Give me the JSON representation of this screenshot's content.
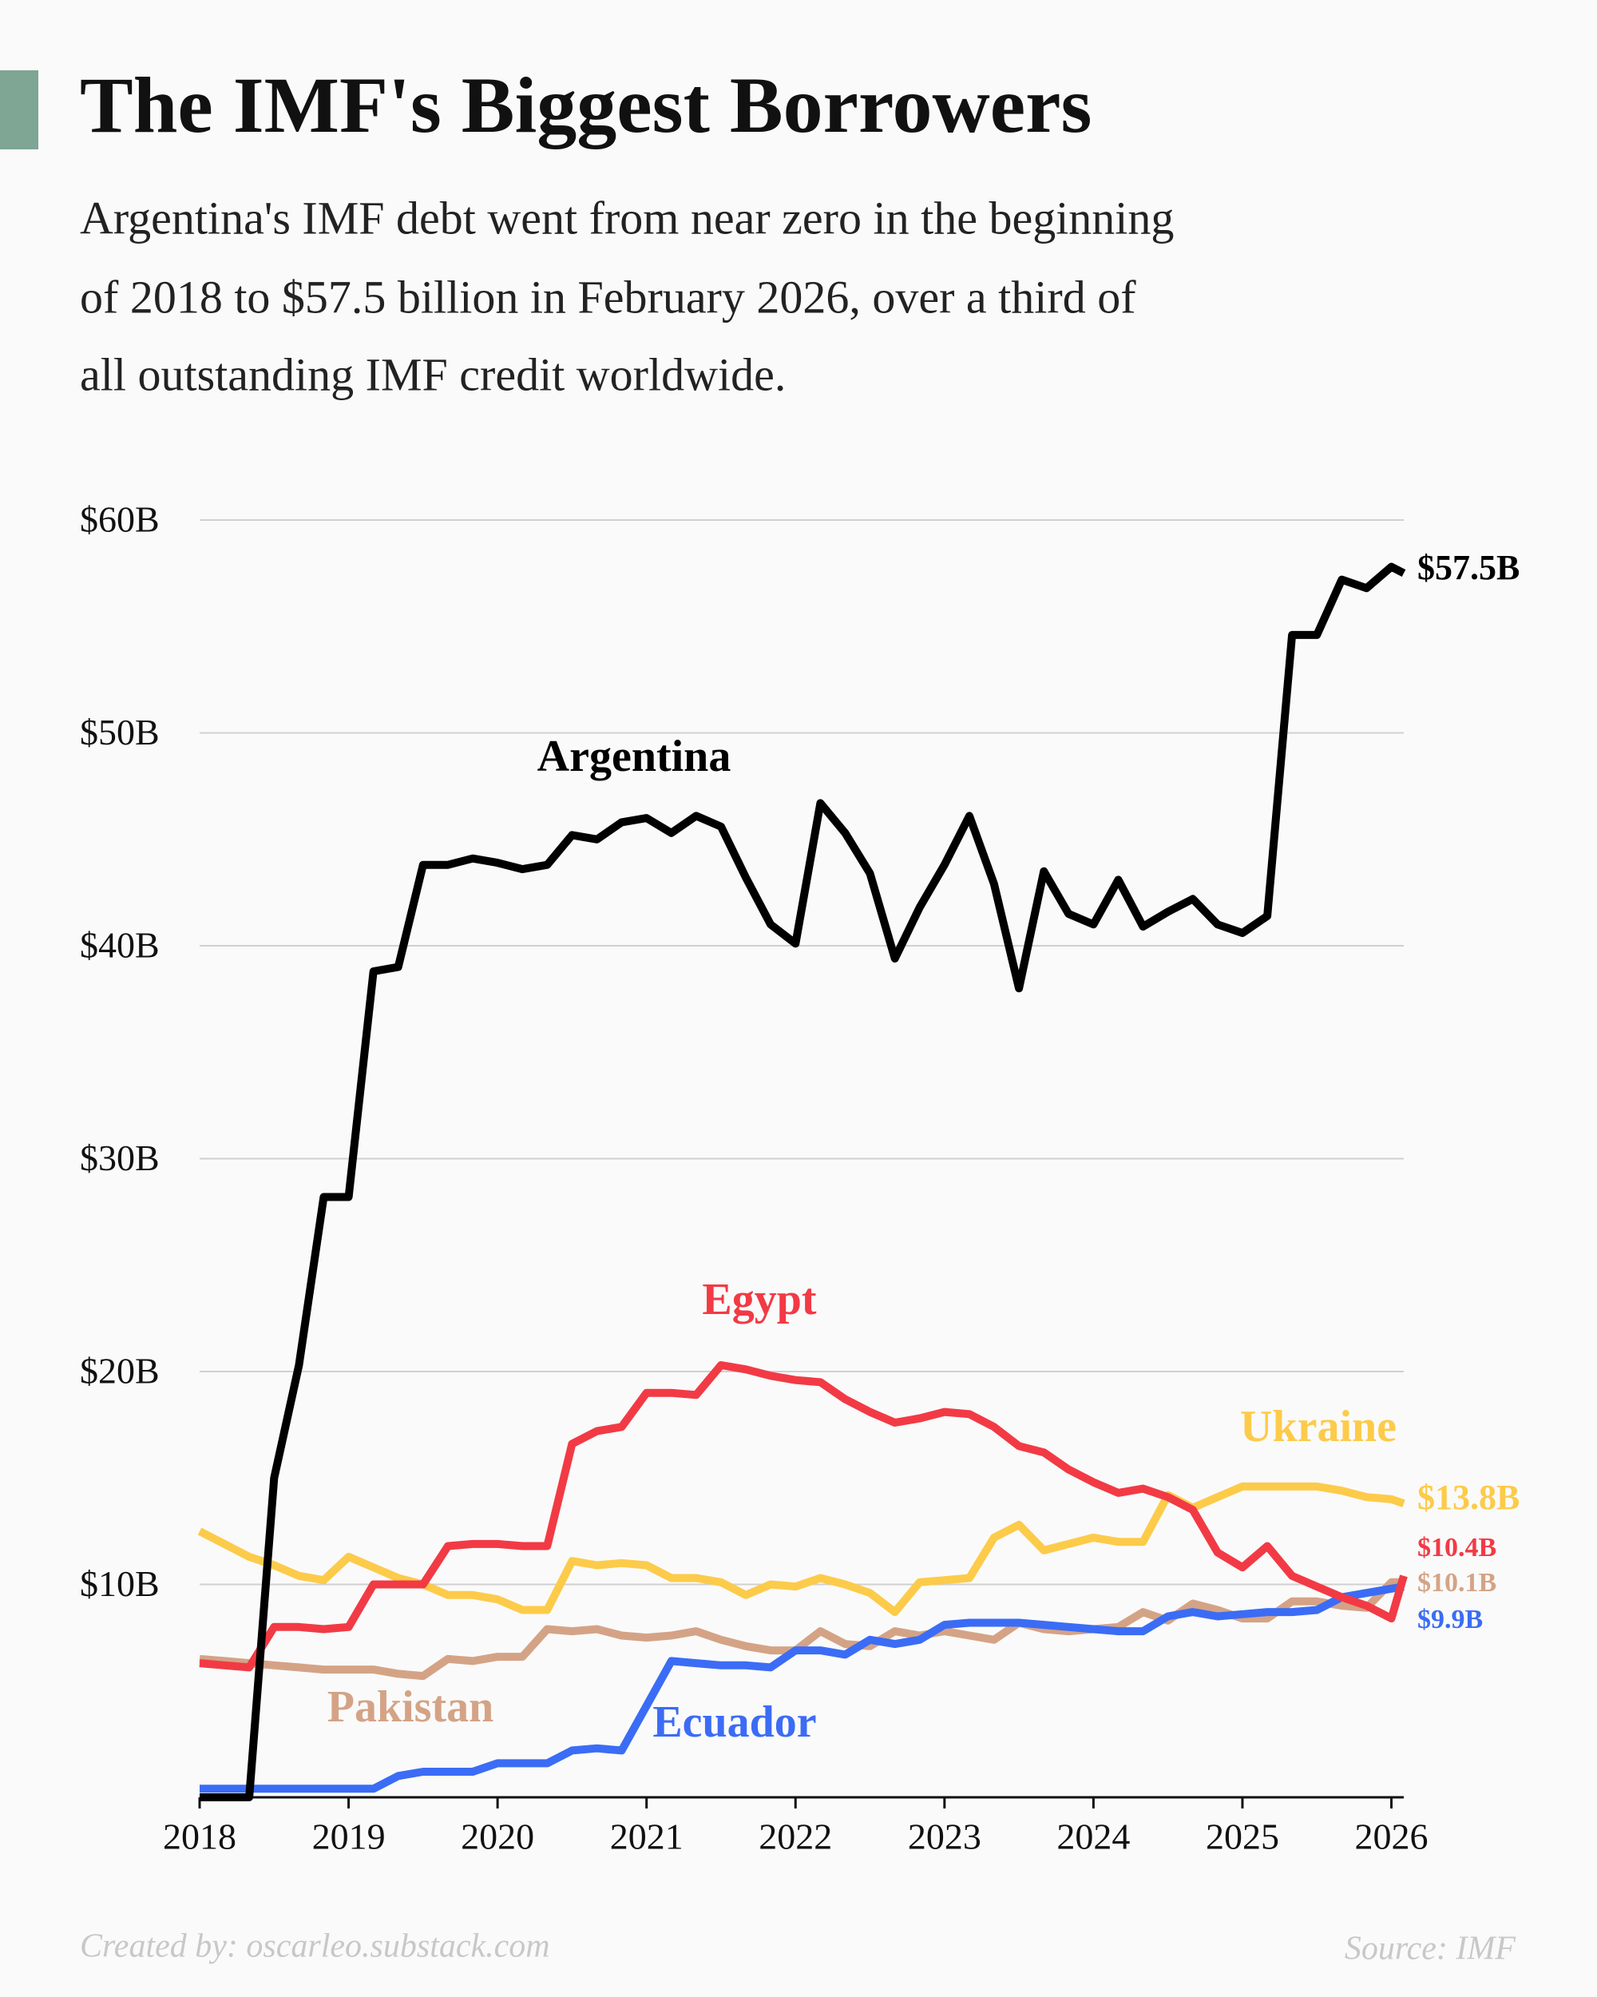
{
  "chart_data": {
    "type": "line",
    "title": "The IMF's Biggest Borrowers",
    "subtitle": [
      "Argentina's IMF debt went from near zero in the beginning",
      "of 2018 to $57.5 billion in February 2026, over a third of",
      "all outstanding IMF credit worldwide."
    ],
    "x": [
      2018,
      2018.167,
      2018.333,
      2018.5,
      2018.667,
      2018.833,
      2019,
      2019.167,
      2019.333,
      2019.5,
      2019.667,
      2019.833,
      2020,
      2020.167,
      2020.333,
      2020.5,
      2020.667,
      2020.833,
      2021,
      2021.167,
      2021.333,
      2021.5,
      2021.667,
      2021.833,
      2022,
      2022.167,
      2022.333,
      2022.5,
      2022.667,
      2022.833,
      2023,
      2023.167,
      2023.333,
      2023.5,
      2023.667,
      2023.833,
      2024,
      2024.167,
      2024.333,
      2024.5,
      2024.667,
      2024.833,
      2025,
      2025.167,
      2025.333,
      2025.5,
      2025.667,
      2025.833,
      2026,
      2026.083
    ],
    "series": [
      {
        "name": "Pakistan",
        "color": "#d4a386",
        "end_label": "$10.1B",
        "values": [
          6.5,
          6.4,
          6.3,
          6.2,
          6.1,
          6,
          6,
          6,
          5.8,
          5.7,
          6.5,
          6.4,
          6.6,
          6.6,
          7.9,
          7.8,
          7.9,
          7.6,
          7.5,
          7.6,
          7.8,
          7.4,
          7.1,
          6.9,
          6.9,
          7.8,
          7.2,
          7.1,
          7.8,
          7.6,
          7.8,
          7.6,
          7.4,
          8.2,
          7.9,
          7.8,
          7.9,
          8,
          8.7,
          8.3,
          9.1,
          8.8,
          8.4,
          8.4,
          9.2,
          9.2,
          9,
          8.9,
          10.1,
          10.1
        ]
      },
      {
        "name": "Ecuador",
        "color": "#3b6cf5",
        "end_label": "$9.9B",
        "values": [
          0.4,
          0.4,
          0.4,
          0.4,
          0.4,
          0.4,
          0.4,
          0.4,
          1,
          1.2,
          1.2,
          1.2,
          1.6,
          1.6,
          1.6,
          2.2,
          2.3,
          2.2,
          4.3,
          6.4,
          6.3,
          6.2,
          6.2,
          6.1,
          6.9,
          6.9,
          6.7,
          7.4,
          7.2,
          7.4,
          8.1,
          8.2,
          8.2,
          8.2,
          8.1,
          8,
          7.9,
          7.8,
          7.8,
          8.5,
          8.7,
          8.5,
          8.6,
          8.7,
          8.7,
          8.8,
          9.4,
          9.6,
          9.8,
          9.9
        ]
      },
      {
        "name": "Ukraine",
        "color": "#fdcb4a",
        "end_label": "$13.8B",
        "values": [
          12.5,
          11.9,
          11.3,
          10.9,
          10.4,
          10.2,
          11.3,
          10.8,
          10.3,
          10,
          9.5,
          9.5,
          9.3,
          8.8,
          8.8,
          11.1,
          10.9,
          11,
          10.9,
          10.3,
          10.3,
          10.1,
          9.5,
          10,
          9.9,
          10.3,
          10,
          9.6,
          8.7,
          10.1,
          10.2,
          10.3,
          12.2,
          12.8,
          11.6,
          11.9,
          12.2,
          12,
          12,
          14.2,
          13.6,
          14.1,
          14.6,
          14.6,
          14.6,
          14.6,
          14.4,
          14.1,
          14,
          13.8
        ]
      },
      {
        "name": "Egypt",
        "color": "#f23a45",
        "end_label": "$10.4B",
        "values": [
          6.3,
          6.2,
          6.1,
          8,
          8,
          7.9,
          8,
          10,
          10,
          10,
          11.8,
          11.9,
          11.9,
          11.8,
          11.8,
          16.6,
          17.2,
          17.4,
          19,
          19,
          18.9,
          20.3,
          20.1,
          19.8,
          19.6,
          19.5,
          18.7,
          18.1,
          17.6,
          17.8,
          18.1,
          18,
          17.4,
          16.5,
          16.2,
          15.4,
          14.8,
          14.3,
          14.5,
          14.1,
          13.5,
          11.5,
          10.8,
          11.8,
          10.4,
          9.9,
          9.4,
          9,
          8.4,
          10.4
        ]
      },
      {
        "name": "Argentina",
        "color": "#000000",
        "end_label": "$57.5B",
        "values": [
          0,
          0,
          0,
          15,
          20.3,
          28.2,
          28.2,
          38.8,
          39,
          43.8,
          43.8,
          44.1,
          43.9,
          43.6,
          43.8,
          45.2,
          45,
          45.8,
          46,
          45.3,
          46.1,
          45.6,
          43.2,
          41,
          40.1,
          46.7,
          45.3,
          43.4,
          39.4,
          41.8,
          43.8,
          46.1,
          42.9,
          38,
          43.5,
          41.5,
          41,
          43.1,
          40.9,
          41.6,
          42.2,
          41,
          40.6,
          41.4,
          54.6,
          54.6,
          57.2,
          56.8,
          57.8,
          57.5
        ]
      }
    ],
    "xlim": [
      2018,
      2026.083
    ],
    "xticks": [
      2018,
      2019,
      2020,
      2021,
      2022,
      2023,
      2024,
      2025,
      2026
    ],
    "ylim": [
      0,
      60
    ],
    "yticks": [
      {
        "value": 10,
        "label": "$10B"
      },
      {
        "value": 20,
        "label": "$20B"
      },
      {
        "value": 30,
        "label": "$30B"
      },
      {
        "value": 40,
        "label": "$40B"
      },
      {
        "value": 50,
        "label": "$50B"
      },
      {
        "value": 60,
        "label": "$60B"
      }
    ],
    "grid": true,
    "credit": "Created by: oscarleo.substack.com",
    "source": "Source: IMF"
  }
}
